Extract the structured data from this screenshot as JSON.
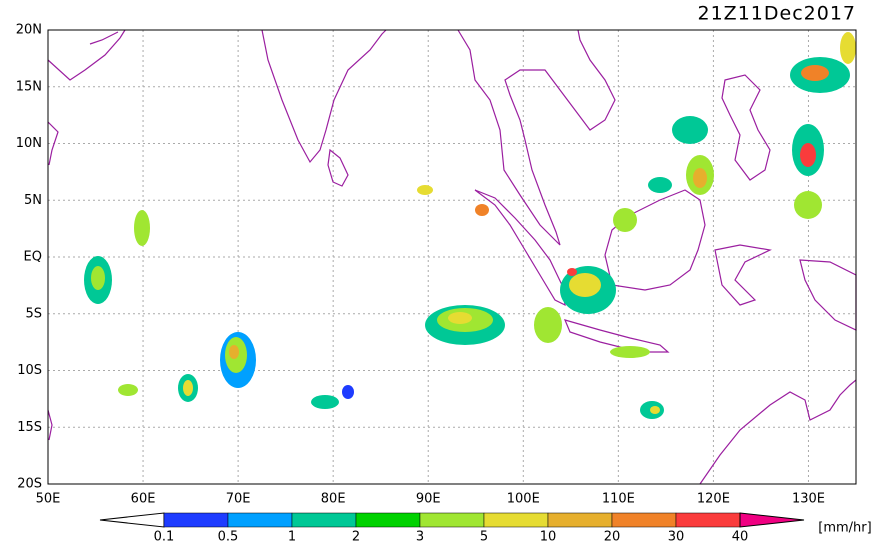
{
  "title": "21Z11Dec2017",
  "lat_labels": [
    "20N",
    "15N",
    "10N",
    "5N",
    "EQ",
    "5S",
    "10S",
    "15S",
    "20S"
  ],
  "lon_labels": [
    "50E",
    "60E",
    "70E",
    "80E",
    "90E",
    "100E",
    "110E",
    "120E",
    "130E"
  ],
  "colorbar": {
    "ticks": [
      0.1,
      0.5,
      1,
      2,
      3,
      5,
      10,
      20,
      30,
      40
    ],
    "colors": [
      "#ffffff",
      "#1e3cff",
      "#00a0ff",
      "#00c896",
      "#00d200",
      "#a0e632",
      "#e6dc32",
      "#e6af2d",
      "#f08228",
      "#fa3c3c",
      "#f00082"
    ],
    "unit": "[mm/hr]"
  }
}
